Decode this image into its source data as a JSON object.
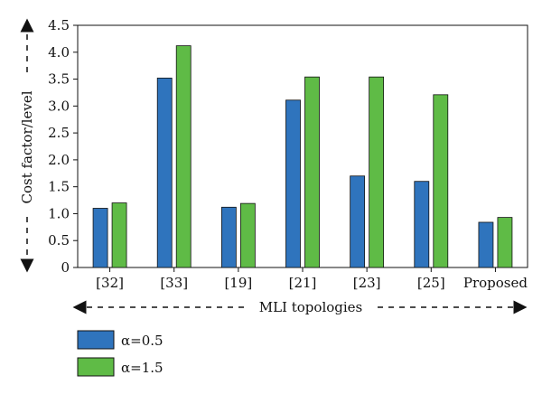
{
  "chart_data": {
    "type": "bar",
    "categories": [
      "[32]",
      "[33]",
      "[19]",
      "[21]",
      "[23]",
      "[25]",
      "Proposed"
    ],
    "series": [
      {
        "name": "α=0.5",
        "color": "#2f74bd",
        "values": [
          1.1,
          3.52,
          1.12,
          3.11,
          1.7,
          1.6,
          0.84
        ]
      },
      {
        "name": "α=1.5",
        "color": "#5fbb46",
        "values": [
          1.2,
          4.12,
          1.19,
          3.54,
          3.54,
          3.21,
          0.93
        ]
      }
    ],
    "xlabel": "MLI topologies",
    "ylabel": "Cost factor/level",
    "ylim": [
      0,
      4.5
    ],
    "yticks": [
      "0",
      "0.5",
      "1.0",
      "1.5",
      "2.0",
      "2.5",
      "3.0",
      "3.5",
      "4.0",
      "4.5"
    ],
    "ytick_values": [
      0,
      0.5,
      1.0,
      1.5,
      2.0,
      2.5,
      3.0,
      3.5,
      4.0,
      4.5
    ],
    "grid": false,
    "legend_position": "bottom-left"
  }
}
